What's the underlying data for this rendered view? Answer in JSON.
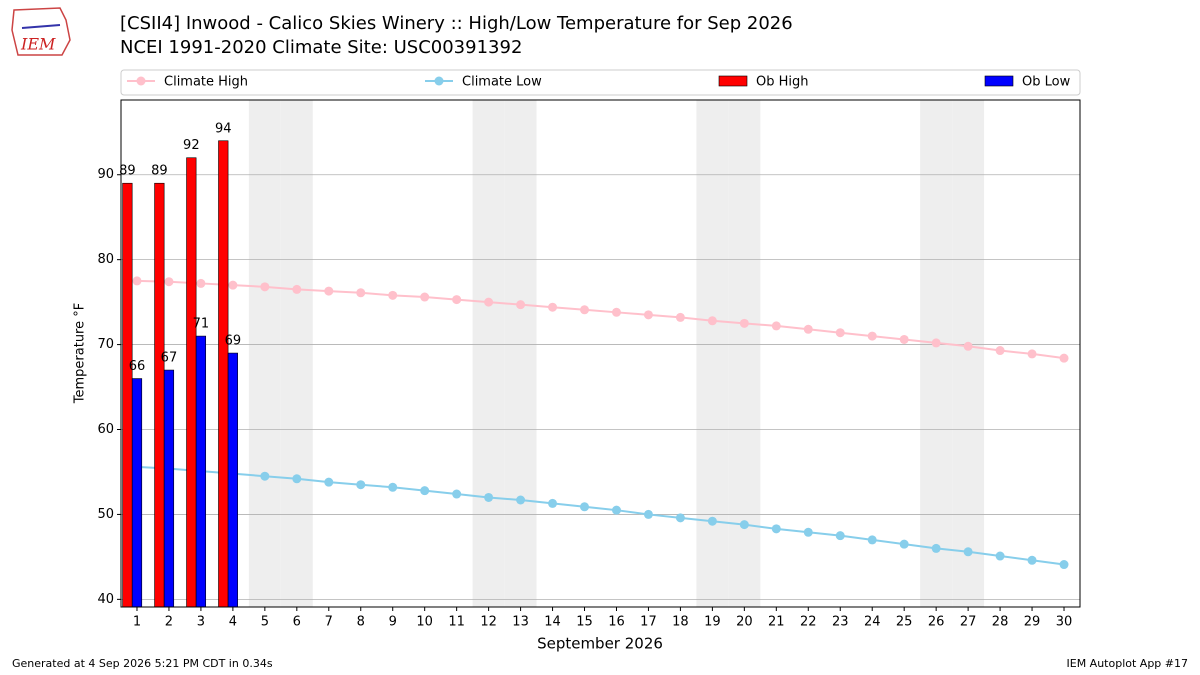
{
  "chart_data": {
    "type": "bar_line",
    "title": "[CSII4] Inwood - Calico Skies Winery :: High/Low Temperature for Sep 2026",
    "subtitle": "NCEI 1991-2020 Climate Site: USC00391392",
    "x_label": "September 2026",
    "y_label": "Temperature °F",
    "footer_left": "Generated at 4 Sep 2026 5:21 PM CDT in 0.34s",
    "footer_right": "IEM Autoplot App #17",
    "logo_text": "IEM",
    "x": [
      1,
      2,
      3,
      4,
      5,
      6,
      7,
      8,
      9,
      10,
      11,
      12,
      13,
      14,
      15,
      16,
      17,
      18,
      19,
      20,
      21,
      22,
      23,
      24,
      25,
      26,
      27,
      28,
      29,
      30
    ],
    "xlim": [
      0.5,
      30.5
    ],
    "xticks": [
      1,
      2,
      3,
      4,
      5,
      6,
      7,
      8,
      9,
      10,
      11,
      12,
      13,
      14,
      15,
      16,
      17,
      18,
      19,
      20,
      21,
      22,
      23,
      24,
      25,
      26,
      27,
      28,
      29,
      30
    ],
    "ylim": [
      39.1,
      98.8
    ],
    "yticks": [
      40,
      50,
      60,
      70,
      80,
      90
    ],
    "grid": true,
    "shaded_days": [
      5,
      6,
      12,
      13,
      19,
      20,
      26,
      27
    ],
    "series": [
      {
        "name": "Climate High",
        "color": "#ffc0cb",
        "kind": "line",
        "values": [
          77.5,
          77.4,
          77.2,
          77.0,
          76.8,
          76.5,
          76.3,
          76.1,
          75.8,
          75.6,
          75.3,
          75.0,
          74.7,
          74.4,
          74.1,
          73.8,
          73.5,
          73.2,
          72.8,
          72.5,
          72.2,
          71.8,
          71.4,
          71.0,
          70.6,
          70.2,
          69.8,
          69.3,
          68.9,
          68.4
        ]
      },
      {
        "name": "Climate Low",
        "color": "#87ceeb",
        "kind": "line",
        "values": [
          55.6,
          55.4,
          55.1,
          54.8,
          54.5,
          54.2,
          53.8,
          53.5,
          53.2,
          52.8,
          52.4,
          52.0,
          51.7,
          51.3,
          50.9,
          50.5,
          50.0,
          49.6,
          49.2,
          48.8,
          48.3,
          47.9,
          47.5,
          47.0,
          46.5,
          46.0,
          45.6,
          45.1,
          44.6,
          44.1
        ]
      },
      {
        "name": "Ob High",
        "color": "#ff0000",
        "kind": "bar",
        "values": [
          89,
          89,
          92,
          94,
          null,
          null,
          null,
          null,
          null,
          null,
          null,
          null,
          null,
          null,
          null,
          null,
          null,
          null,
          null,
          null,
          null,
          null,
          null,
          null,
          null,
          null,
          null,
          null,
          null,
          null
        ]
      },
      {
        "name": "Ob Low",
        "color": "#0000ff",
        "kind": "bar",
        "values": [
          66,
          67,
          71,
          69,
          null,
          null,
          null,
          null,
          null,
          null,
          null,
          null,
          null,
          null,
          null,
          null,
          null,
          null,
          null,
          null,
          null,
          null,
          null,
          null,
          null,
          null,
          null,
          null,
          null,
          null
        ]
      }
    ]
  }
}
